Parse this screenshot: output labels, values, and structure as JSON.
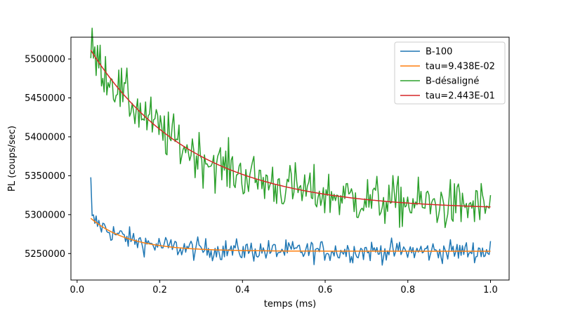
{
  "chart_data": {
    "type": "line",
    "title": "",
    "xlabel": "temps (ms)",
    "ylabel": "PL (coups/sec)",
    "xlim": [
      -0.015,
      1.045
    ],
    "ylim": [
      5216000,
      5528000
    ],
    "xticks": [
      0.0,
      0.2,
      0.4,
      0.6,
      0.8,
      1.0
    ],
    "xtick_labels": [
      "0.0",
      "0.2",
      "0.4",
      "0.6",
      "0.8",
      "1.0"
    ],
    "yticks": [
      5250000,
      5300000,
      5350000,
      5400000,
      5450000,
      5500000
    ],
    "ytick_labels": [
      "5250000",
      "5300000",
      "5350000",
      "5400000",
      "5450000",
      "5500000"
    ],
    "grid": false,
    "legend_position": "top-right",
    "x_range": [
      0.033,
      1.0
    ],
    "n_points": 300,
    "series": [
      {
        "name": "B-100",
        "kind": "noisy data",
        "color": "#1f77b4",
        "trend": {
          "offset": 5253000,
          "amplitude": 60000,
          "tau": 0.09438
        },
        "noise_amplitude": 7000,
        "start_value": 5348000,
        "end_value": 5266000
      },
      {
        "name": "tau=9.438E-02",
        "kind": "exponential fit",
        "color": "#ff7f0e",
        "offset": 5253000,
        "amplitude": 60000,
        "tau": 0.09438
      },
      {
        "name": "B-désaligné",
        "kind": "noisy data",
        "color": "#2ca02c",
        "trend": {
          "offset": 5306000,
          "amplitude": 235000,
          "tau": 0.2443
        },
        "noise_amplitude": 16000,
        "start_value": 5501000,
        "end_value": 5325000
      },
      {
        "name": "tau=2.443E-01",
        "kind": "exponential fit",
        "color": "#d62728",
        "offset": 5306000,
        "amplitude": 235000,
        "tau": 0.2443
      }
    ]
  }
}
